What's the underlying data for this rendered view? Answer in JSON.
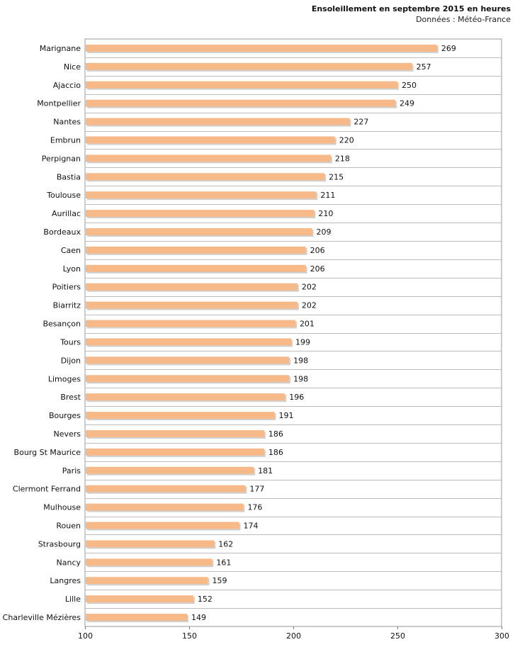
{
  "chart_data": {
    "type": "bar",
    "orientation": "horizontal",
    "title": "Ensoleillement en septembre 2015 en heures",
    "subtitle": "Données : Météo-France",
    "xlabel": "",
    "ylabel": "",
    "xlim": [
      100,
      300
    ],
    "xticks": [
      100,
      150,
      200,
      250,
      300
    ],
    "grid": true,
    "bar_color": "#f8b988",
    "bar_shadow_color": "#aaaaaa",
    "categories": [
      "Marignane",
      "Nice",
      "Ajaccio",
      "Montpellier",
      "Nantes",
      "Embrun",
      "Perpignan",
      "Bastia",
      "Toulouse",
      "Aurillac",
      "Bordeaux",
      "Caen",
      "Lyon",
      "Poitiers",
      "Biarritz",
      "Besançon",
      "Tours",
      "Dijon",
      "Limoges",
      "Brest",
      "Bourges",
      "Nevers",
      "Bourg St Maurice",
      "Paris",
      "Clermont Ferrand",
      "Mulhouse",
      "Rouen",
      "Strasbourg",
      "Nancy",
      "Langres",
      "Lille",
      "Charleville Mézières"
    ],
    "values": [
      269,
      257,
      250,
      249,
      227,
      220,
      218,
      215,
      211,
      210,
      209,
      206,
      206,
      202,
      202,
      201,
      199,
      198,
      198,
      196,
      191,
      186,
      186,
      181,
      177,
      176,
      174,
      162,
      161,
      159,
      152,
      149
    ]
  }
}
